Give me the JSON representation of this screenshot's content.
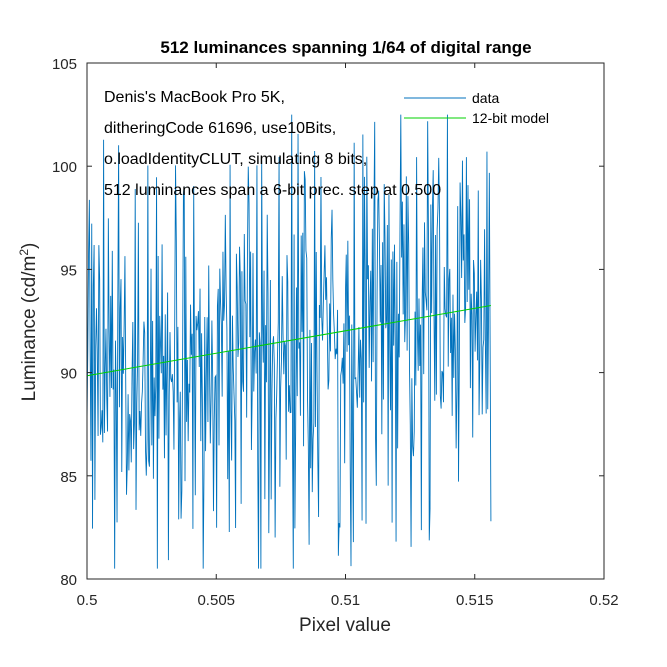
{
  "chart_data": {
    "type": "line",
    "title": "512 luminances spanning 1/64 of digital range",
    "xlabel": "Pixel value",
    "ylabel_main": "Luminance (cd/m",
    "ylabel_sup": "2",
    "ylabel_close": ")",
    "xlim": [
      0.5,
      0.52
    ],
    "ylim": [
      80,
      105
    ],
    "x_ticks": [
      0.5,
      0.505,
      0.51,
      0.515,
      0.52
    ],
    "x_tick_labels": [
      "0.5",
      "0.505",
      "0.51",
      "0.515",
      "0.52"
    ],
    "y_ticks": [
      80,
      85,
      90,
      95,
      100,
      105
    ],
    "y_tick_labels": [
      "80",
      "85",
      "90",
      "95",
      "100",
      "105"
    ],
    "grid": false,
    "legend_position": "top-right",
    "annotation_lines": [
      "Denis's MacBook Pro 5K,",
      "ditheringCode 61696, use10Bits,",
      "o.loadIdentityCLUT, simulating 8 bits,",
      "512 luminances span a 6-bit prec. step at 0.500"
    ],
    "series": [
      {
        "name": "data",
        "color": "#0072BD",
        "n_points": 512,
        "x_start": 0.5,
        "x_end": 0.515625,
        "y_min": 80.5,
        "y_max": 102.5,
        "mean_start": 90.0,
        "mean_end": 93.0
      },
      {
        "name": "12-bit model",
        "color": "#00D100",
        "x": [
          0.5,
          0.515625
        ],
        "y": [
          89.85,
          93.25
        ]
      }
    ]
  }
}
